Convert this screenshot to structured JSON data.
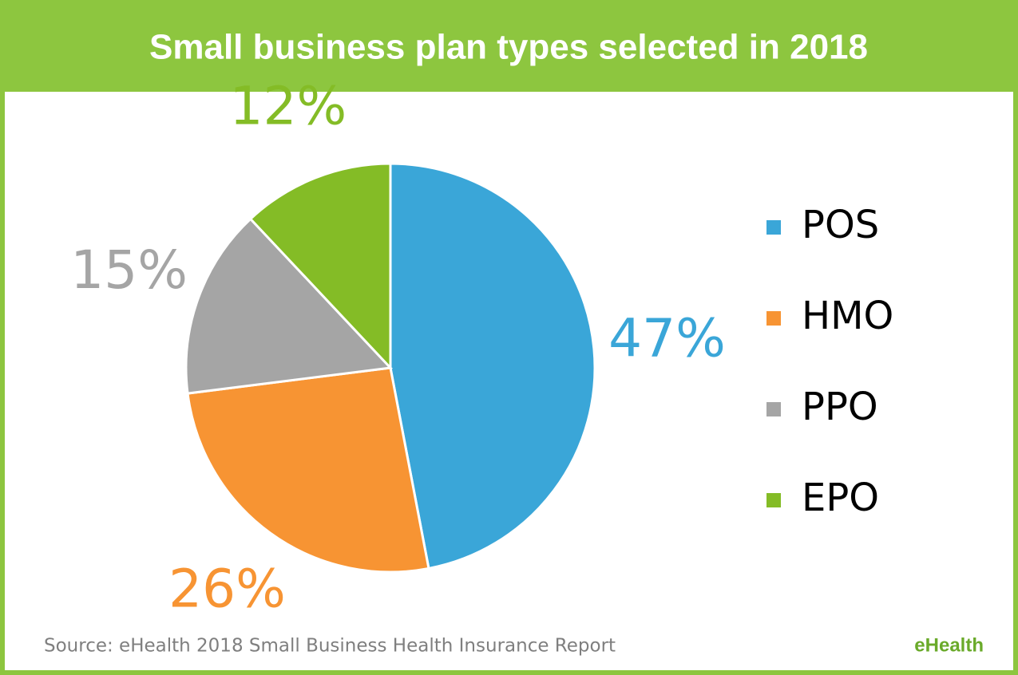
{
  "chart_data": {
    "type": "pie",
    "title": "Small business plan types selected in 2018",
    "categories": [
      "POS",
      "HMO",
      "PPO",
      "EPO"
    ],
    "values": [
      47,
      26,
      15,
      12
    ],
    "value_labels": [
      "47%",
      "26%",
      "15%",
      "12%"
    ],
    "colors": [
      "#3aa6d8",
      "#f79433",
      "#a5a5a5",
      "#84bc26"
    ],
    "legend": "right",
    "source": "Source: eHealth 2018 Small Business Health Insurance Report",
    "logo": "eHealth"
  }
}
